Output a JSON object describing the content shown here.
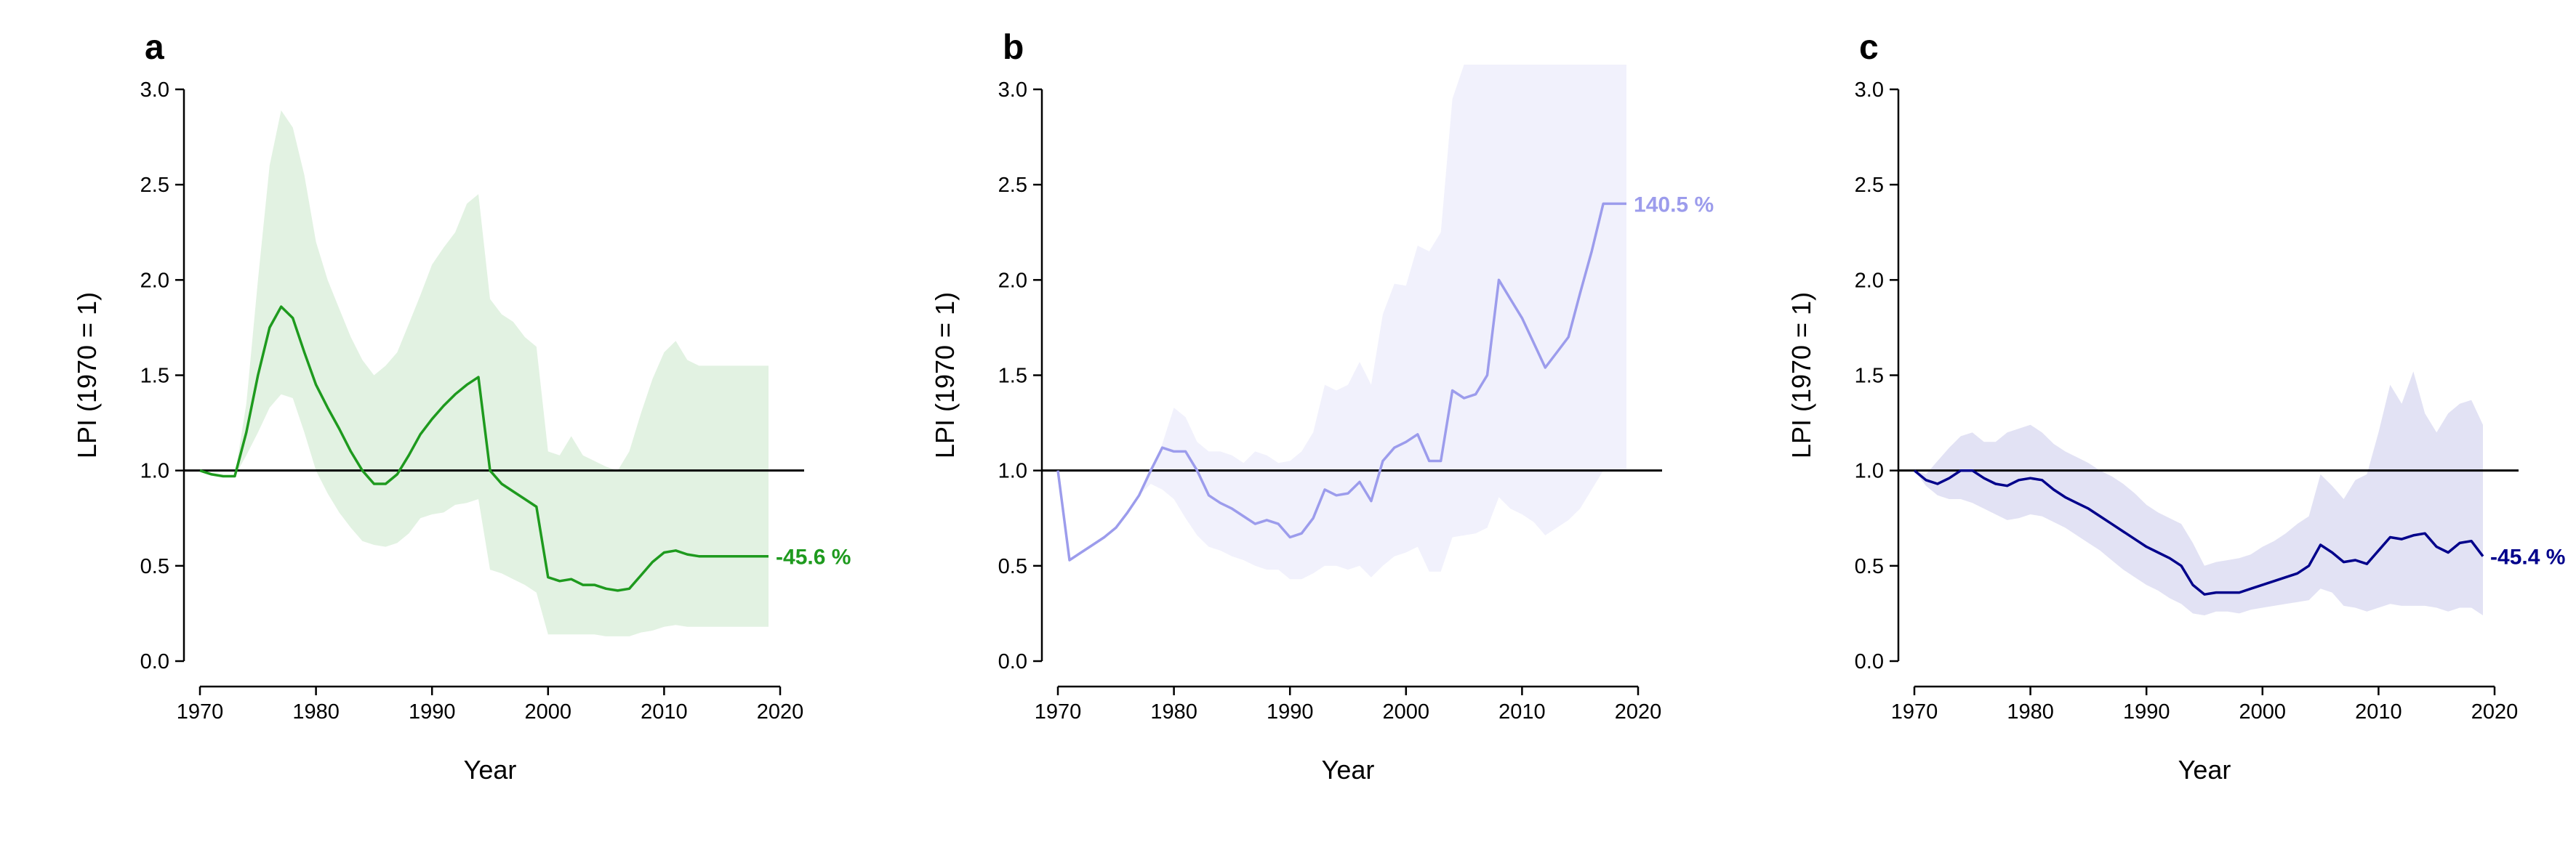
{
  "chart_data": [
    {
      "type": "line",
      "panel_label": "a",
      "xlabel": "Year",
      "ylabel": "LPI (1970 = 1)",
      "xlim": [
        1970,
        2020
      ],
      "ylim": [
        0,
        3
      ],
      "xticks": [
        "1970",
        "1980",
        "1990",
        "2000",
        "2010",
        "2020"
      ],
      "yticks": [
        "0.0",
        "0.5",
        "1.0",
        "1.5",
        "2.0",
        "2.5",
        "3.0"
      ],
      "reference_line": 1.0,
      "line_color": "#1e9a1e",
      "band_color": "#e2f2e2",
      "end_label": "-45.6 %",
      "x": [
        1970,
        1971,
        1972,
        1973,
        1974,
        1975,
        1976,
        1977,
        1978,
        1979,
        1980,
        1981,
        1982,
        1983,
        1984,
        1985,
        1986,
        1987,
        1988,
        1989,
        1990,
        1991,
        1992,
        1993,
        1994,
        1995,
        1996,
        1997,
        1998,
        1999,
        2000,
        2001,
        2002,
        2003,
        2004,
        2005,
        2006,
        2007,
        2008,
        2009,
        2010,
        2011,
        2012,
        2013,
        2014,
        2015,
        2016,
        2017,
        2018,
        2019
      ],
      "y": [
        1.0,
        0.98,
        0.97,
        0.97,
        1.2,
        1.5,
        1.75,
        1.86,
        1.8,
        1.62,
        1.45,
        1.33,
        1.22,
        1.1,
        1.0,
        0.93,
        0.93,
        0.98,
        1.08,
        1.19,
        1.27,
        1.34,
        1.4,
        1.45,
        1.49,
        1.0,
        0.93,
        0.89,
        0.85,
        0.81,
        0.44,
        0.42,
        0.43,
        0.4,
        0.4,
        0.38,
        0.37,
        0.38,
        0.45,
        0.52,
        0.57,
        0.58,
        0.56,
        0.55,
        0.55,
        0.55,
        0.55,
        0.55,
        0.55,
        0.55
      ],
      "upper": [
        1.0,
        0.98,
        0.97,
        0.97,
        1.35,
        2.0,
        2.6,
        2.89,
        2.8,
        2.55,
        2.2,
        2.0,
        1.85,
        1.7,
        1.58,
        1.5,
        1.55,
        1.62,
        1.77,
        1.92,
        2.08,
        2.17,
        2.25,
        2.4,
        2.45,
        1.9,
        1.82,
        1.78,
        1.7,
        1.65,
        1.1,
        1.08,
        1.18,
        1.08,
        1.05,
        1.02,
        1.0,
        1.1,
        1.3,
        1.48,
        1.62,
        1.68,
        1.58,
        1.55,
        1.55,
        1.55,
        1.55,
        1.55,
        1.55,
        1.55
      ],
      "lower": [
        1.0,
        0.98,
        0.97,
        0.97,
        1.08,
        1.2,
        1.33,
        1.4,
        1.38,
        1.2,
        1.0,
        0.88,
        0.78,
        0.7,
        0.63,
        0.61,
        0.6,
        0.62,
        0.67,
        0.75,
        0.77,
        0.78,
        0.82,
        0.83,
        0.85,
        0.48,
        0.46,
        0.43,
        0.4,
        0.36,
        0.14,
        0.14,
        0.14,
        0.14,
        0.14,
        0.13,
        0.13,
        0.13,
        0.15,
        0.16,
        0.18,
        0.19,
        0.18,
        0.18,
        0.18,
        0.18,
        0.18,
        0.18,
        0.18,
        0.18
      ]
    },
    {
      "type": "line",
      "panel_label": "b",
      "xlabel": "Year",
      "ylabel": "LPI (1970 = 1)",
      "xlim": [
        1970,
        2020
      ],
      "ylim": [
        0,
        3
      ],
      "xticks": [
        "1970",
        "1980",
        "1990",
        "2000",
        "2010",
        "2020"
      ],
      "yticks": [
        "0.0",
        "0.5",
        "1.0",
        "1.5",
        "2.0",
        "2.5",
        "3.0"
      ],
      "reference_line": 1.0,
      "line_color": "#9c9cec",
      "band_color": "#f1f1fc",
      "end_label": "140.5 %",
      "x": [
        1970,
        1971,
        1972,
        1973,
        1974,
        1975,
        1976,
        1977,
        1978,
        1979,
        1980,
        1981,
        1982,
        1983,
        1984,
        1985,
        1986,
        1987,
        1988,
        1989,
        1990,
        1991,
        1992,
        1993,
        1994,
        1995,
        1996,
        1997,
        1998,
        1999,
        2000,
        2001,
        2002,
        2003,
        2004,
        2005,
        2006,
        2007,
        2008,
        2009,
        2010,
        2011,
        2012,
        2013,
        2014,
        2015,
        2016,
        2017,
        2018,
        2019
      ],
      "y": [
        1.0,
        0.53,
        0.57,
        0.61,
        0.65,
        0.7,
        0.78,
        0.87,
        1.0,
        1.12,
        1.1,
        1.1,
        1.0,
        0.87,
        0.83,
        0.8,
        0.76,
        0.72,
        0.74,
        0.72,
        0.65,
        0.67,
        0.75,
        0.9,
        0.87,
        0.88,
        0.94,
        0.84,
        1.05,
        1.12,
        1.15,
        1.19,
        1.05,
        1.05,
        1.42,
        1.38,
        1.4,
        1.5,
        2.0,
        1.9,
        1.8,
        1.67,
        1.54,
        1.62,
        1.7,
        1.93,
        2.15,
        2.4,
        2.4,
        2.4
      ],
      "upper": [
        1.0,
        0.53,
        0.57,
        0.61,
        0.65,
        0.7,
        0.78,
        0.87,
        1.0,
        1.14,
        1.33,
        1.28,
        1.15,
        1.1,
        1.1,
        1.08,
        1.04,
        1.1,
        1.08,
        1.04,
        1.05,
        1.1,
        1.2,
        1.45,
        1.42,
        1.45,
        1.57,
        1.45,
        1.82,
        1.98,
        1.97,
        2.18,
        2.15,
        2.25,
        2.95,
        3.13,
        3.13,
        3.13,
        3.13,
        3.13,
        3.13,
        3.13,
        3.13,
        3.13,
        3.13,
        3.13,
        3.13,
        3.13,
        3.13,
        3.13
      ],
      "lower": [
        1.0,
        0.53,
        0.57,
        0.61,
        0.65,
        0.7,
        0.78,
        0.87,
        0.93,
        0.9,
        0.85,
        0.75,
        0.66,
        0.6,
        0.58,
        0.55,
        0.53,
        0.5,
        0.48,
        0.48,
        0.43,
        0.43,
        0.46,
        0.5,
        0.5,
        0.48,
        0.5,
        0.44,
        0.5,
        0.55,
        0.57,
        0.6,
        0.47,
        0.47,
        0.65,
        0.66,
        0.67,
        0.7,
        0.86,
        0.8,
        0.77,
        0.73,
        0.66,
        0.7,
        0.74,
        0.8,
        0.9,
        1.0,
        1.0,
        1.0
      ]
    },
    {
      "type": "line",
      "panel_label": "c",
      "xlabel": "Year",
      "ylabel": "LPI (1970 = 1)",
      "xlim": [
        1970,
        2020
      ],
      "ylim": [
        0,
        3
      ],
      "xticks": [
        "1970",
        "1980",
        "1990",
        "2000",
        "2010",
        "2020"
      ],
      "yticks": [
        "0.0",
        "0.5",
        "1.0",
        "1.5",
        "2.0",
        "2.5",
        "3.0"
      ],
      "reference_line": 1.0,
      "line_color": "#00008b",
      "band_color": "#e2e2f4",
      "end_label": "-45.4 %",
      "x": [
        1970,
        1971,
        1972,
        1973,
        1974,
        1975,
        1976,
        1977,
        1978,
        1979,
        1980,
        1981,
        1982,
        1983,
        1984,
        1985,
        1986,
        1987,
        1988,
        1989,
        1990,
        1991,
        1992,
        1993,
        1994,
        1995,
        1996,
        1997,
        1998,
        1999,
        2000,
        2001,
        2002,
        2003,
        2004,
        2005,
        2006,
        2007,
        2008,
        2009,
        2010,
        2011,
        2012,
        2013,
        2014,
        2015,
        2016,
        2017,
        2018,
        2019
      ],
      "y": [
        1.0,
        0.95,
        0.93,
        0.96,
        1.0,
        1.0,
        0.96,
        0.93,
        0.92,
        0.95,
        0.96,
        0.95,
        0.9,
        0.86,
        0.83,
        0.8,
        0.76,
        0.72,
        0.68,
        0.64,
        0.6,
        0.57,
        0.54,
        0.5,
        0.4,
        0.35,
        0.36,
        0.36,
        0.36,
        0.38,
        0.4,
        0.42,
        0.44,
        0.46,
        0.5,
        0.61,
        0.57,
        0.52,
        0.53,
        0.51,
        0.58,
        0.65,
        0.64,
        0.66,
        0.67,
        0.6,
        0.57,
        0.62,
        0.63,
        0.55
      ],
      "upper": [
        1.0,
        0.98,
        1.05,
        1.12,
        1.18,
        1.2,
        1.15,
        1.15,
        1.2,
        1.22,
        1.24,
        1.2,
        1.14,
        1.1,
        1.07,
        1.04,
        1.0,
        0.97,
        0.93,
        0.88,
        0.82,
        0.78,
        0.75,
        0.72,
        0.62,
        0.5,
        0.52,
        0.53,
        0.54,
        0.56,
        0.6,
        0.63,
        0.67,
        0.72,
        0.76,
        0.98,
        0.92,
        0.85,
        0.95,
        0.98,
        1.2,
        1.45,
        1.35,
        1.52,
        1.3,
        1.2,
        1.3,
        1.35,
        1.37,
        1.24
      ],
      "lower": [
        1.0,
        0.92,
        0.87,
        0.85,
        0.85,
        0.83,
        0.8,
        0.77,
        0.74,
        0.75,
        0.77,
        0.76,
        0.73,
        0.7,
        0.66,
        0.62,
        0.58,
        0.53,
        0.48,
        0.44,
        0.4,
        0.37,
        0.33,
        0.3,
        0.25,
        0.24,
        0.26,
        0.26,
        0.25,
        0.27,
        0.28,
        0.29,
        0.3,
        0.31,
        0.32,
        0.38,
        0.36,
        0.29,
        0.28,
        0.26,
        0.28,
        0.3,
        0.29,
        0.29,
        0.29,
        0.28,
        0.26,
        0.28,
        0.28,
        0.24
      ]
    }
  ]
}
